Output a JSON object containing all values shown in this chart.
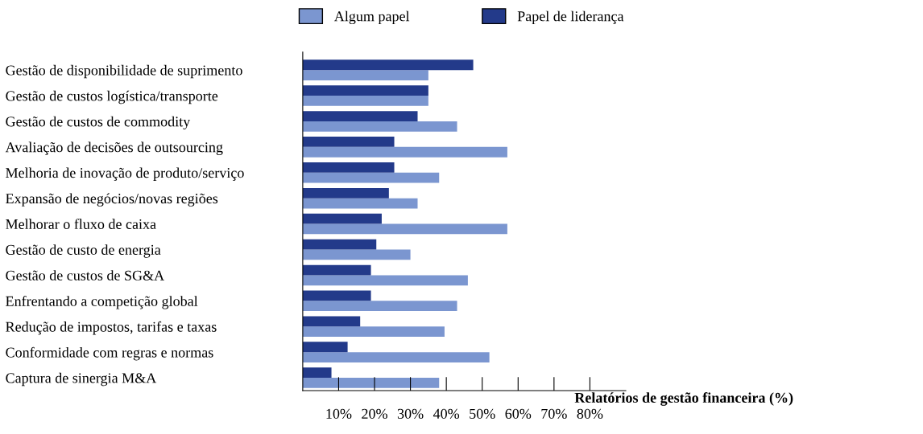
{
  "chart_data": {
    "type": "bar",
    "orientation": "horizontal",
    "categories": [
      "Gestão de disponibilidade de suprimento",
      "Gestão de custos logística/transporte",
      "Gestão de custos de commodity",
      "Avaliação de decisões de outsourcing",
      "Melhoria de inovação de produto/serviço",
      "Expansão de negócios/novas regiões",
      "Melhorar o fluxo de caixa",
      "Gestão de custo de energia",
      "Gestão de custos de SG&A",
      "Enfrentando a competição global",
      "Redução de impostos, tarifas e taxas",
      "Conformidade com regras e normas",
      "Captura de sinergia M&A"
    ],
    "series": [
      {
        "name": "Algum papel",
        "color": "#7b96d0",
        "values": [
          35,
          35,
          43,
          57,
          38,
          32,
          57,
          30,
          46,
          43,
          39.5,
          52,
          38
        ]
      },
      {
        "name": "Papel de liderança",
        "color": "#233a8a",
        "values": [
          47.5,
          35,
          32,
          25.5,
          25.5,
          24,
          22,
          20.5,
          19,
          19,
          16,
          12.5,
          8
        ]
      }
    ],
    "xlabel": "Relatórios de gestão financeira (%)",
    "xlim": [
      0,
      90
    ],
    "xticks": [
      {
        "value": 10,
        "label": "10%"
      },
      {
        "value": 20,
        "label": "20%"
      },
      {
        "value": 30,
        "label": "30%"
      },
      {
        "value": 40,
        "label": "40%"
      },
      {
        "value": 50,
        "label": "50%"
      },
      {
        "value": 60,
        "label": "60%"
      },
      {
        "value": 70,
        "label": "70%"
      },
      {
        "value": 80,
        "label": "80%"
      }
    ],
    "legend": "top",
    "grid": false
  }
}
